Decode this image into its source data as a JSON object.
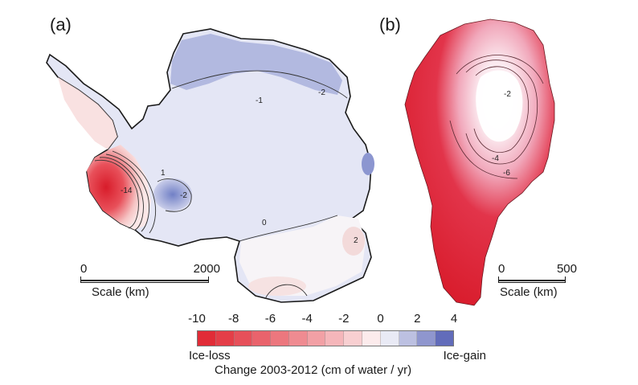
{
  "panels": {
    "a": {
      "label": "(a)",
      "scale_min": "0",
      "scale_max": "2000",
      "scale_caption": "Scale (km)",
      "contour_labels": [
        "-1",
        "-2",
        "1",
        "-14",
        "-2",
        "0",
        "2"
      ]
    },
    "b": {
      "label": "(b)",
      "scale_min": "0",
      "scale_max": "500",
      "scale_caption": "Scale (km)",
      "contour_labels": [
        "-2",
        "-4",
        "-6"
      ]
    }
  },
  "colorbar": {
    "tick_labels": [
      "-10",
      "-8",
      "-6",
      "-4",
      "-2",
      "0",
      "2",
      "4"
    ],
    "tick_values": [
      -10,
      -8,
      -6,
      -4,
      -2,
      0,
      2,
      4
    ],
    "min": -10,
    "max": 4,
    "end_left": "Ice-loss",
    "end_right": "Ice-gain",
    "title": "Change 2003-2012 (cm of water / yr)",
    "colors": {
      "loss": "#e0232f",
      "neutral": "#ffffff",
      "gain": "#4b57b0"
    }
  }
}
